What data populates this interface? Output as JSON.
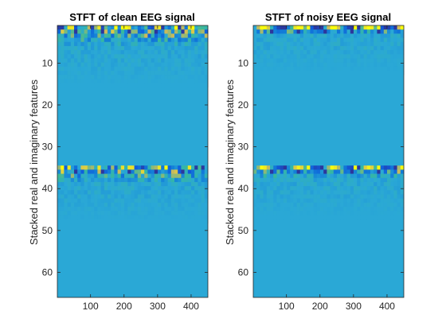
{
  "chart_data": [
    {
      "type": "heatmap",
      "title": "STFT of clean EEG signal",
      "ylabel": "Stacked real and imaginary features",
      "xlabel": "",
      "xlim": [
        1,
        450
      ],
      "ylim": [
        1,
        66
      ],
      "y_reversed": true,
      "xticks": [
        100,
        200,
        300,
        400
      ],
      "yticks": [
        10,
        20,
        30,
        40,
        50,
        60
      ],
      "colormap": "parula",
      "background_color": "#2aa8d6",
      "band_rows": [
        {
          "row_start": 1,
          "row_end": 5,
          "strength": 0.9
        },
        {
          "row_start": 35,
          "row_end": 38,
          "strength": 0.9
        }
      ],
      "description_of_pattern": "strong fluctuations near rows 1-5 and 35-38; near-constant elsewhere"
    },
    {
      "type": "heatmap",
      "title": "STFT of noisy EEG signal",
      "ylabel": "Stacked real and imaginary features",
      "xlabel": "",
      "xlim": [
        1,
        450
      ],
      "ylim": [
        1,
        66
      ],
      "y_reversed": true,
      "xticks": [
        100,
        200,
        300,
        400
      ],
      "yticks": [
        10,
        20,
        30,
        40,
        50,
        60
      ],
      "colormap": "parula",
      "background_color": "#2aa8d6",
      "band_rows": [
        {
          "row_start": 1,
          "row_end": 2,
          "strength": 1.0
        },
        {
          "row_start": 35,
          "row_end": 37,
          "strength": 0.85
        }
      ],
      "description_of_pattern": "very bright row at top and around row 35-36; near-constant elsewhere"
    }
  ]
}
